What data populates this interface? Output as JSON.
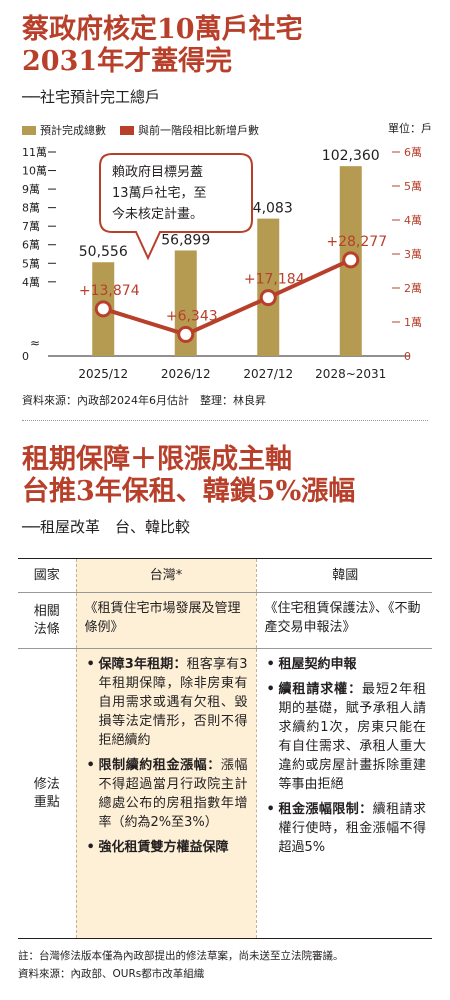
{
  "chart_title": {
    "line1": "蔡政府核定10萬戶社宅",
    "line2": "2031年才蓋得完"
  },
  "chart_subtitle": "──社宅預計完工總戶",
  "legend": {
    "bar": "預計完成總數",
    "line": "與前一階段相比新增戶數"
  },
  "unit": "單位：戶",
  "callout": {
    "lines": [
      "賴政府目標另蓋",
      "13萬戶社宅，至",
      "今未核定計畫。"
    ]
  },
  "chart_data": {
    "type": "bar",
    "categories": [
      "2025/12",
      "2026/12",
      "2027/12",
      "2028~2031"
    ],
    "series": [
      {
        "name": "預計完成總數",
        "type": "bar",
        "axis": "left",
        "values": [
          50556,
          56899,
          74083,
          102360
        ],
        "labels": [
          "50,556",
          "56,899",
          "74,083",
          "102,360"
        ]
      },
      {
        "name": "與前一階段相比新增戶數",
        "type": "line",
        "axis": "right",
        "values": [
          13874,
          6343,
          17184,
          28277
        ],
        "labels": [
          "+13,874",
          "+6,343",
          "+17,184",
          "+28,277"
        ]
      }
    ],
    "left_axis": {
      "ylim": [
        0,
        110000
      ],
      "ticks": [
        0,
        40000,
        50000,
        60000,
        70000,
        80000,
        90000,
        100000,
        110000
      ],
      "tick_labels": [
        "0",
        "4萬",
        "5萬",
        "6萬",
        "7萬",
        "8萬",
        "9萬",
        "10萬",
        "11萬"
      ]
    },
    "right_axis": {
      "ylim": [
        0,
        60000
      ],
      "ticks": [
        0,
        10000,
        20000,
        30000,
        40000,
        50000,
        60000
      ],
      "tick_labels": [
        "0",
        "1萬",
        "2萬",
        "3萬",
        "4萬",
        "5萬",
        "6萬"
      ]
    },
    "colors": {
      "bar": "#b59a52",
      "line": "#b8402a",
      "label": "#b8402a"
    }
  },
  "source1": "資料來源：內政部2024年6月估計　整理：林良昇",
  "section2_title": {
    "line1": "租期保障＋限漲成主軸",
    "line2": "台推3年保租、韓鎖5%漲幅"
  },
  "section2_subtitle": "──租屋改革　台、韓比較",
  "table": {
    "headers": [
      "國家",
      "台灣*",
      "韓國"
    ],
    "law_label": [
      "相關",
      "法條"
    ],
    "law_tw": "《租賃住宅市場發展及管理條例》",
    "law_kr": "《住宅租賃保護法》、《不動產交易申報法》",
    "points_label": [
      "修法",
      "重點"
    ],
    "tw_points": [
      {
        "bold": "保障3年租期：",
        "text": "租客享有3年租期保障，除非房東有自用需求或遇有欠租、毀損等法定情形，否則不得拒絕續約"
      },
      {
        "bold": "限制續約租金漲幅：",
        "text": "漲幅不得超過當月行政院主計總處公布的房租指數年增率（約為2%至3%）"
      },
      {
        "bold": "強化租賃雙方權益保障",
        "text": ""
      }
    ],
    "kr_points": [
      {
        "bold": "租屋契約申報",
        "text": ""
      },
      {
        "bold": "續租請求權：",
        "text": "最短2年租期的基礎，賦予承租人請求續約1次，房東只能在有自住需求、承租人重大違約或房屋計畫拆除重建等事由拒絕"
      },
      {
        "bold": "租金漲幅限制：",
        "text": "續租請求權行使時，租金漲幅不得超過5%"
      }
    ]
  },
  "note": "註：台灣修法版本僅為內政部提出的修法草案，尚未送至立法院審議。",
  "source2": "資料來源：內政部、OURs都市改革組織"
}
